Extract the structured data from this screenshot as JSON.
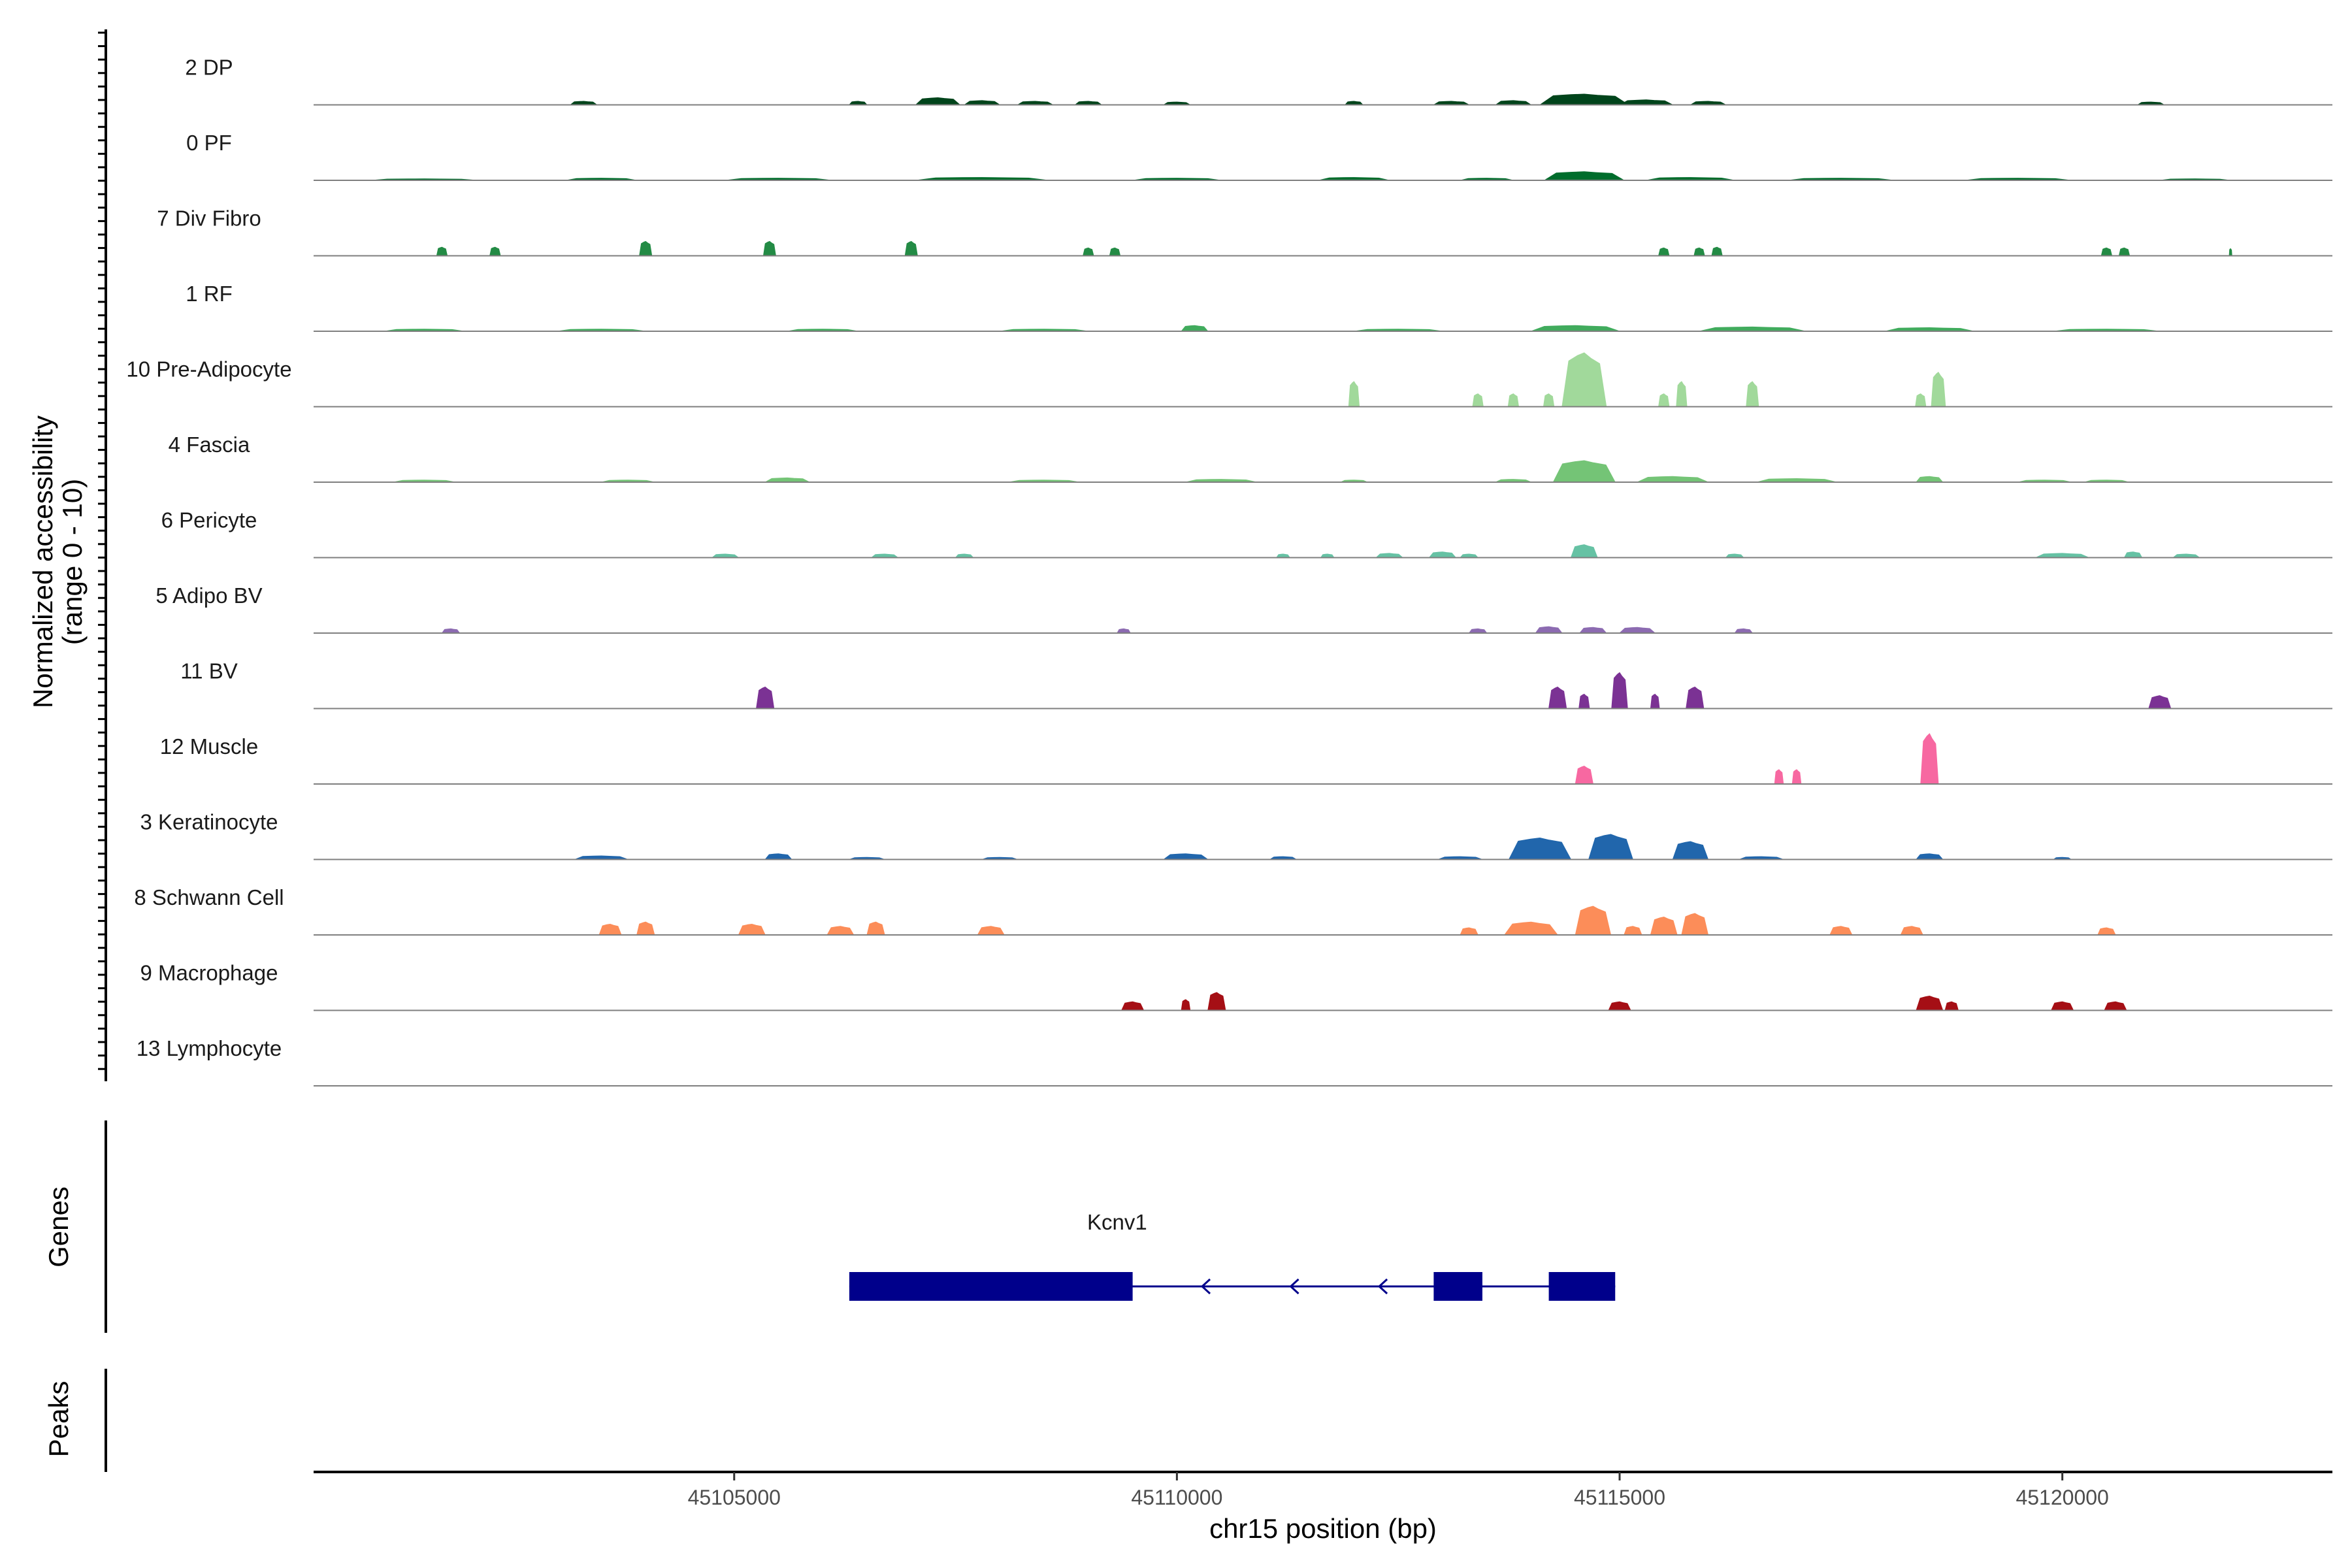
{
  "chart_data": {
    "type": "coverage",
    "title": "",
    "ylabel_line1": "Normalized accessibility",
    "ylabel_line2": "(range 0 - 10)",
    "xlabel": "chr15 position (bp)",
    "xlim": [
      45100250,
      45123050
    ],
    "ylim": [
      0,
      10
    ],
    "x_ticks": [
      45105000,
      45110000,
      45115000,
      45120000
    ],
    "x_tick_labels": [
      "45105000",
      "45110000",
      "45115000",
      "45120000"
    ],
    "tracks": [
      {
        "name": "2 DP",
        "color": "#00441b",
        "peaks": [
          [
            45103300,
            0.5,
            300
          ],
          [
            45106400,
            0.5,
            200
          ],
          [
            45107300,
            1.0,
            500
          ],
          [
            45107800,
            0.6,
            400
          ],
          [
            45108400,
            0.5,
            400
          ],
          [
            45109000,
            0.5,
            300
          ],
          [
            45110000,
            0.4,
            300
          ],
          [
            45112000,
            0.5,
            200
          ],
          [
            45113100,
            0.5,
            400
          ],
          [
            45113800,
            0.6,
            400
          ],
          [
            45114600,
            1.5,
            1000
          ],
          [
            45115300,
            0.7,
            600
          ],
          [
            45116000,
            0.5,
            400
          ],
          [
            45121000,
            0.4,
            300
          ]
        ]
      },
      {
        "name": "0 PF",
        "color": "#006d2c",
        "peaks": [
          [
            45101500,
            0.2,
            1200
          ],
          [
            45103500,
            0.3,
            800
          ],
          [
            45105500,
            0.3,
            1200
          ],
          [
            45107800,
            0.4,
            1500
          ],
          [
            45110000,
            0.3,
            1000
          ],
          [
            45112000,
            0.4,
            800
          ],
          [
            45113500,
            0.3,
            600
          ],
          [
            45114600,
            1.2,
            900
          ],
          [
            45115800,
            0.4,
            1000
          ],
          [
            45117500,
            0.3,
            1200
          ],
          [
            45119500,
            0.3,
            1200
          ],
          [
            45121500,
            0.2,
            800
          ]
        ]
      },
      {
        "name": "7 Div Fibro",
        "color": "#238b45",
        "peaks": [
          [
            45101700,
            1.2,
            120
          ],
          [
            45102300,
            1.2,
            120
          ],
          [
            45104000,
            2.0,
            140
          ],
          [
            45105400,
            2.0,
            140
          ],
          [
            45107000,
            2.0,
            140
          ],
          [
            45109000,
            1.1,
            120
          ],
          [
            45109300,
            1.1,
            120
          ],
          [
            45115500,
            1.1,
            120
          ],
          [
            45115900,
            1.1,
            120
          ],
          [
            45116100,
            1.2,
            120
          ],
          [
            45120500,
            1.1,
            120
          ],
          [
            45120700,
            1.1,
            120
          ],
          [
            45121900,
            1.0,
            30
          ]
        ]
      },
      {
        "name": "1 RF",
        "color": "#41ab5d",
        "peaks": [
          [
            45101500,
            0.3,
            900
          ],
          [
            45103500,
            0.3,
            1000
          ],
          [
            45106000,
            0.3,
            800
          ],
          [
            45108500,
            0.3,
            1000
          ],
          [
            45110200,
            0.8,
            300
          ],
          [
            45112500,
            0.3,
            1000
          ],
          [
            45114500,
            0.8,
            1000
          ],
          [
            45116500,
            0.6,
            1200
          ],
          [
            45118500,
            0.5,
            1000
          ],
          [
            45120500,
            0.3,
            1200
          ]
        ]
      },
      {
        "name": "10 Pre-Adipocyte",
        "color": "#a1d99b",
        "peaks": [
          [
            45112000,
            3.5,
            120
          ],
          [
            45113400,
            1.8,
            120
          ],
          [
            45113800,
            1.8,
            120
          ],
          [
            45114200,
            1.8,
            120
          ],
          [
            45114600,
            7.5,
            500
          ],
          [
            45115700,
            3.5,
            120
          ],
          [
            45115500,
            1.8,
            120
          ],
          [
            45116500,
            3.5,
            140
          ],
          [
            45118400,
            1.8,
            120
          ],
          [
            45118600,
            4.8,
            160
          ]
        ]
      },
      {
        "name": "4 Fascia",
        "color": "#74c476",
        "peaks": [
          [
            45101500,
            0.3,
            700
          ],
          [
            45103800,
            0.3,
            600
          ],
          [
            45105600,
            0.6,
            500
          ],
          [
            45108500,
            0.3,
            800
          ],
          [
            45110500,
            0.4,
            800
          ],
          [
            45112000,
            0.3,
            300
          ],
          [
            45113800,
            0.4,
            400
          ],
          [
            45114600,
            3.0,
            700
          ],
          [
            45115600,
            0.8,
            800
          ],
          [
            45117000,
            0.5,
            900
          ],
          [
            45118500,
            0.8,
            300
          ],
          [
            45119800,
            0.3,
            600
          ],
          [
            45120500,
            0.3,
            500
          ]
        ]
      },
      {
        "name": "6 Pericyte",
        "color": "#66c2a4",
        "peaks": [
          [
            45104900,
            0.5,
            300
          ],
          [
            45106700,
            0.5,
            300
          ],
          [
            45107600,
            0.5,
            200
          ],
          [
            45111200,
            0.5,
            150
          ],
          [
            45111700,
            0.5,
            150
          ],
          [
            45112400,
            0.6,
            300
          ],
          [
            45113000,
            0.8,
            300
          ],
          [
            45113300,
            0.5,
            200
          ],
          [
            45114600,
            1.8,
            300
          ],
          [
            45116300,
            0.5,
            200
          ],
          [
            45120000,
            0.6,
            600
          ],
          [
            45120800,
            0.8,
            200
          ],
          [
            45121400,
            0.5,
            300
          ]
        ]
      },
      {
        "name": "5 Adipo BV",
        "color": "#8c6bb1",
        "peaks": [
          [
            45101800,
            0.6,
            200
          ],
          [
            45109400,
            0.6,
            150
          ],
          [
            45113400,
            0.6,
            200
          ],
          [
            45114200,
            0.9,
            300
          ],
          [
            45114700,
            0.8,
            300
          ],
          [
            45115200,
            0.8,
            400
          ],
          [
            45116400,
            0.6,
            200
          ]
        ]
      },
      {
        "name": "11 BV",
        "color": "#7b3294",
        "peaks": [
          [
            45105350,
            3.0,
            200
          ],
          [
            45114300,
            3.0,
            200
          ],
          [
            45114600,
            2.0,
            120
          ],
          [
            45115000,
            5.0,
            180
          ],
          [
            45115400,
            2.0,
            100
          ],
          [
            45115850,
            3.0,
            200
          ],
          [
            45121100,
            1.8,
            250
          ]
        ]
      },
      {
        "name": "12 Muscle",
        "color": "#f768a1",
        "peaks": [
          [
            45114600,
            2.5,
            200
          ],
          [
            45116800,
            2.0,
            100
          ],
          [
            45117000,
            2.0,
            100
          ],
          [
            45118500,
            7.0,
            200
          ]
        ]
      },
      {
        "name": "3 Keratinocyte",
        "color": "#2166ac",
        "peaks": [
          [
            45103500,
            0.5,
            600
          ],
          [
            45105500,
            0.8,
            300
          ],
          [
            45106500,
            0.3,
            400
          ],
          [
            45108000,
            0.3,
            400
          ],
          [
            45110100,
            0.8,
            500
          ],
          [
            45111200,
            0.4,
            300
          ],
          [
            45113200,
            0.4,
            500
          ],
          [
            45114100,
            3.0,
            700
          ],
          [
            45114900,
            3.5,
            500
          ],
          [
            45115800,
            2.5,
            400
          ],
          [
            45116600,
            0.4,
            500
          ],
          [
            45118500,
            0.8,
            300
          ],
          [
            45120000,
            0.3,
            200
          ]
        ]
      },
      {
        "name": "8 Schwann Cell",
        "color": "#fc8d59",
        "peaks": [
          [
            45103600,
            1.5,
            250
          ],
          [
            45104000,
            1.8,
            200
          ],
          [
            45105200,
            1.5,
            300
          ],
          [
            45106200,
            1.2,
            300
          ],
          [
            45106600,
            1.8,
            200
          ],
          [
            45107900,
            1.2,
            300
          ],
          [
            45113300,
            1.0,
            200
          ],
          [
            45114000,
            1.8,
            600
          ],
          [
            45114700,
            4.0,
            400
          ],
          [
            45115150,
            1.2,
            200
          ],
          [
            45115500,
            2.5,
            300
          ],
          [
            45115850,
            3.0,
            300
          ],
          [
            45117500,
            1.2,
            250
          ],
          [
            45118300,
            1.2,
            250
          ],
          [
            45120500,
            1.0,
            200
          ]
        ]
      },
      {
        "name": "9 Macrophage",
        "color": "#a50f15",
        "peaks": [
          [
            45109500,
            1.2,
            250
          ],
          [
            45110100,
            1.5,
            100
          ],
          [
            45110450,
            2.5,
            200
          ],
          [
            45115000,
            1.2,
            250
          ],
          [
            45118500,
            2.0,
            300
          ],
          [
            45118750,
            1.2,
            150
          ],
          [
            45120000,
            1.2,
            250
          ],
          [
            45120600,
            1.2,
            250
          ]
        ]
      },
      {
        "name": "13 Lymphocyte",
        "color": "#e31a1c",
        "peaks": []
      }
    ],
    "genes_label": "Genes",
    "peaks_label": "Peaks",
    "gene": {
      "name": "Kcnv1",
      "start": 45106300,
      "end": 45114950,
      "strand": "-",
      "exons": [
        [
          45106300,
          45109500
        ],
        [
          45112900,
          45113450
        ],
        [
          45114200,
          45114950
        ]
      ],
      "color": "#00008b"
    }
  }
}
